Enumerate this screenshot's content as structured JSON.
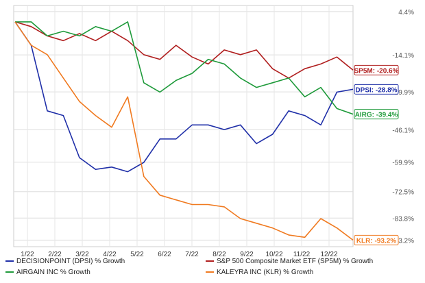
{
  "chart_data": {
    "type": "line",
    "title": "",
    "xlabel": "",
    "ylabel": "",
    "x_ticks": [
      "1/22",
      "2/22",
      "3/22",
      "4/22",
      "5/22",
      "6/22",
      "7/22",
      "8/22",
      "9/22",
      "10/22",
      "11/22",
      "12/22"
    ],
    "y_ticks": [
      "4.4%",
      "-14.1%",
      "-29.9%",
      "-46.1%",
      "-59.9%",
      "-72.5%",
      "-83.8%",
      "-93.2%"
    ],
    "y_tick_values": [
      4.4,
      -14.1,
      -29.9,
      -46.1,
      -59.9,
      -72.5,
      -83.8,
      -93.2
    ],
    "ylim": [
      -96,
      7
    ],
    "grid": true,
    "legend_position": "bottom",
    "series": [
      {
        "name": "DECISIONPOINT (DPSI) % Growth",
        "end_label": "DPSI: -28.8%",
        "color": "#1f2fa8",
        "values": [
          0,
          -10,
          -38,
          -40,
          -58,
          -63,
          -62,
          -64,
          -60,
          -50,
          -50,
          -44,
          -44,
          -46,
          -44,
          -52,
          -48,
          -38,
          -40,
          -44,
          -30,
          -28.8
        ]
      },
      {
        "name": "S&P 500 Composite Market ETF (SP5M) % Growth",
        "end_label": "SP5M: -20.6%",
        "color": "#b01e1e",
        "values": [
          0,
          -2,
          -6,
          -8,
          -5,
          -8,
          -4,
          -8,
          -14,
          -16,
          -10,
          -15,
          -18,
          -12,
          -14,
          -12,
          -20,
          -24,
          -20,
          -18,
          -15,
          -20.6
        ]
      },
      {
        "name": "AIRGAIN INC % Growth",
        "end_label": "AIRG: -39.4%",
        "color": "#1e9a3a",
        "values": [
          0,
          0,
          -6,
          -4,
          -6,
          -2,
          -4,
          0,
          -26,
          -30,
          -25,
          -22,
          -16,
          -18,
          -24,
          -28,
          -26,
          -24,
          -32,
          -28,
          -37,
          -39.4
        ]
      },
      {
        "name": "KALEYRA INC (KLR) % Growth",
        "end_label": "KLR: -93.2%",
        "color": "#f07a20",
        "values": [
          0,
          -10,
          -14,
          -24,
          -34,
          -40,
          -45,
          -32,
          -66,
          -74,
          -76,
          -78,
          -78,
          -79,
          -84,
          -86,
          -88,
          -91,
          -92,
          -84,
          -88,
          -93.2
        ]
      }
    ]
  }
}
